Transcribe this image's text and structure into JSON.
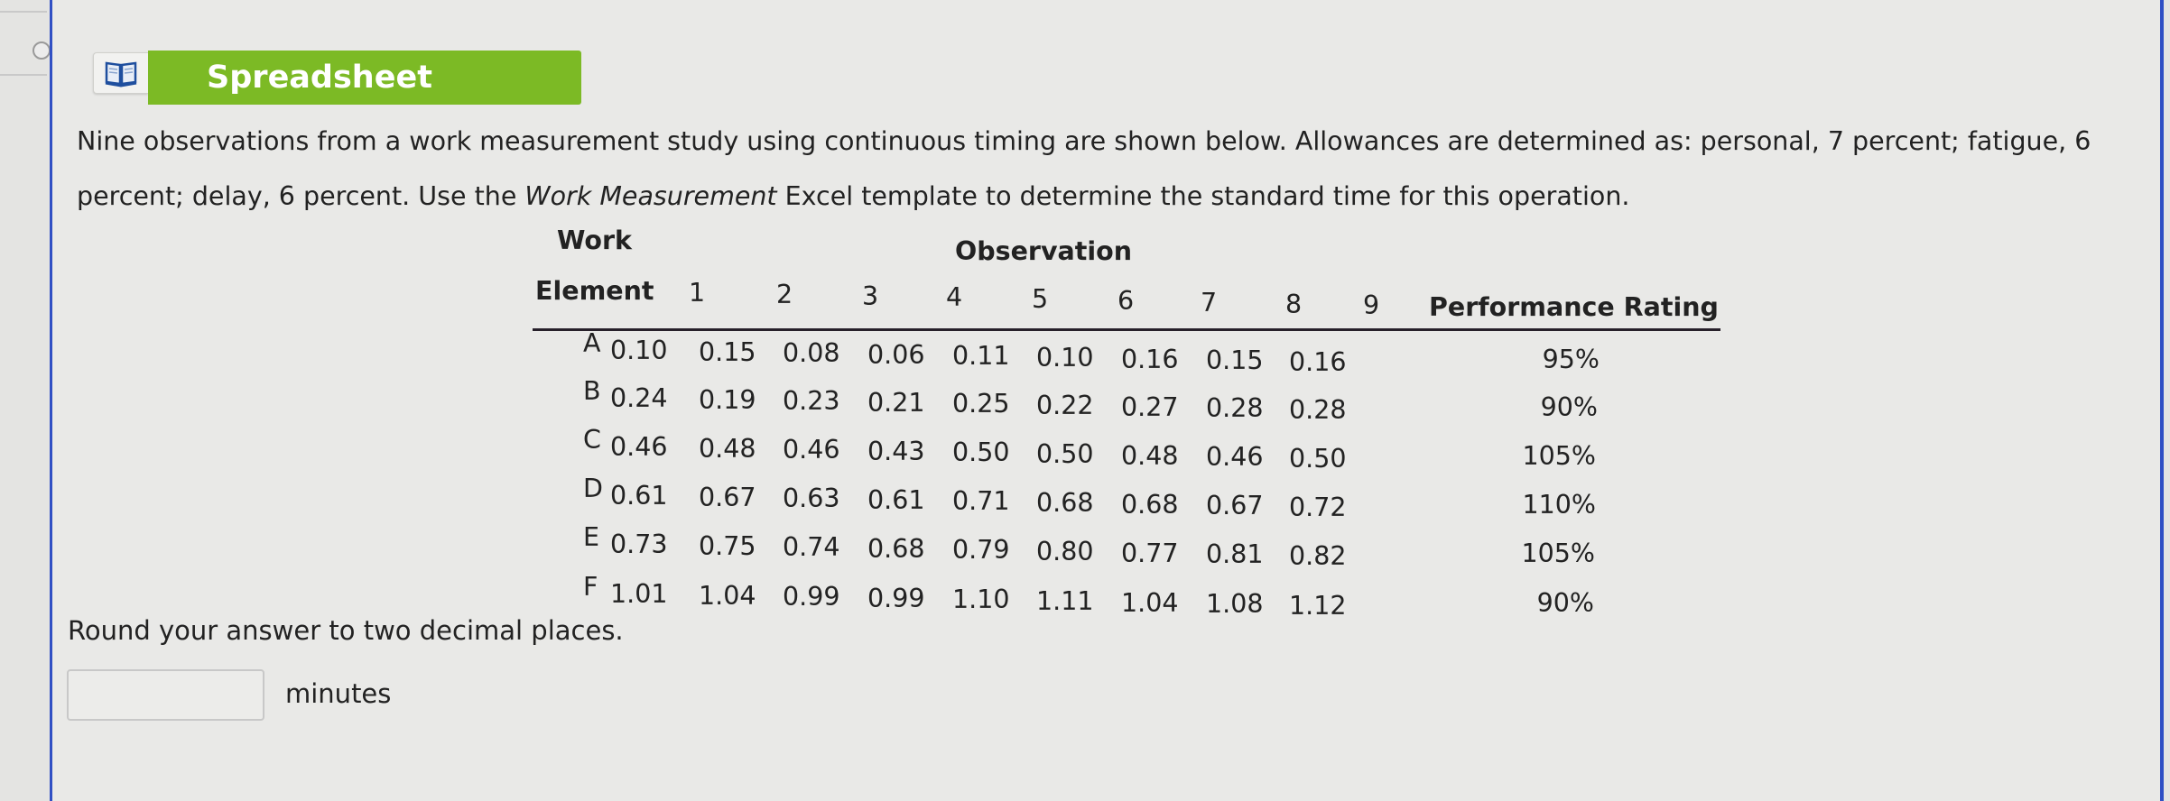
{
  "tool_button": {
    "icon": "book-icon",
    "label": "Spreadsheet",
    "color": "#7cba25"
  },
  "prompt": {
    "part1": "Nine observations from a work measurement study using continuous timing are shown below. Allowances are determined as: personal, 7 percent; fatigue, 6 percent; delay, 6 percent. Use the ",
    "italic": "Work Measurement",
    "part2": " Excel template to determine the standard time for this operation."
  },
  "table": {
    "header_top": {
      "work": "Work",
      "observation": "Observation"
    },
    "header": {
      "element": "Element",
      "observations": [
        "1",
        "2",
        "3",
        "4",
        "5",
        "6",
        "7",
        "8",
        "9"
      ],
      "rating": "Performance Rating"
    },
    "rows": [
      {
        "element": "A",
        "values": [
          "0.10",
          "0.15",
          "0.08",
          "0.06",
          "0.11",
          "0.10",
          "0.16",
          "0.15",
          "0.16"
        ],
        "rating": "95%"
      },
      {
        "element": "B",
        "values": [
          "0.24",
          "0.19",
          "0.23",
          "0.21",
          "0.25",
          "0.22",
          "0.27",
          "0.28",
          "0.28"
        ],
        "rating": "90%"
      },
      {
        "element": "C",
        "values": [
          "0.46",
          "0.48",
          "0.46",
          "0.43",
          "0.50",
          "0.50",
          "0.48",
          "0.46",
          "0.50"
        ],
        "rating": "105%"
      },
      {
        "element": "D",
        "values": [
          "0.61",
          "0.67",
          "0.63",
          "0.61",
          "0.71",
          "0.68",
          "0.68",
          "0.67",
          "0.72"
        ],
        "rating": "110%"
      },
      {
        "element": "E",
        "values": [
          "0.73",
          "0.75",
          "0.74",
          "0.68",
          "0.79",
          "0.80",
          "0.77",
          "0.81",
          "0.82"
        ],
        "rating": "105%"
      },
      {
        "element": "F",
        "values": [
          "1.01",
          "1.04",
          "0.99",
          "0.99",
          "1.10",
          "1.11",
          "1.04",
          "1.08",
          "1.12"
        ],
        "rating": "90%"
      }
    ]
  },
  "answer": {
    "instruction": "Round your answer to two decimal places.",
    "value": "",
    "placeholder": "",
    "unit": "minutes"
  }
}
